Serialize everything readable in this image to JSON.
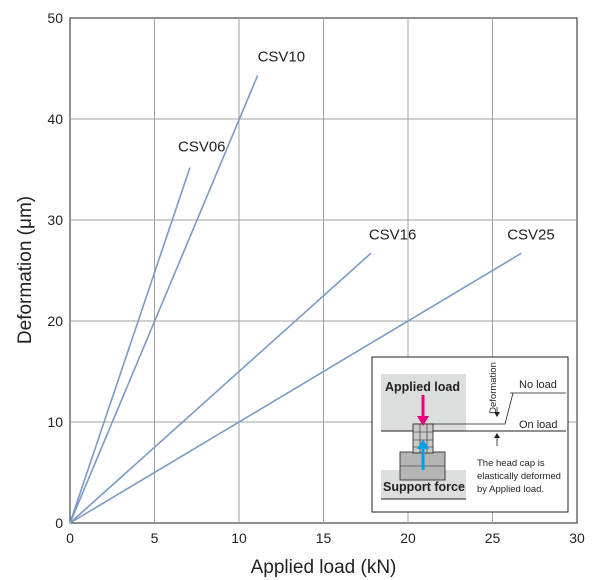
{
  "chart_data": {
    "type": "line",
    "title": "",
    "xlabel": "Applied load (kN)",
    "ylabel": "Deformation (μm)",
    "xlim": [
      0,
      30
    ],
    "ylim": [
      0,
      50
    ],
    "xticks": [
      "0",
      "5",
      "10",
      "15",
      "20",
      "25",
      "30"
    ],
    "yticks": [
      "0",
      "10",
      "20",
      "30",
      "40",
      "50"
    ],
    "grid": true,
    "series_color": "#7b9ac8",
    "series": [
      {
        "name": "CSV06",
        "x": [
          0,
          7.1
        ],
        "y": [
          0,
          35.2
        ]
      },
      {
        "name": "CSV10",
        "x": [
          0,
          11.1
        ],
        "y": [
          0,
          44.3
        ]
      },
      {
        "name": "CSV16",
        "x": [
          0,
          17.8
        ],
        "y": [
          0,
          26.7
        ]
      },
      {
        "name": "CSV25",
        "x": [
          0,
          26.7
        ],
        "y": [
          0,
          26.7
        ]
      }
    ],
    "inset": {
      "applied_load": "Applied load",
      "support_force": "Support force",
      "deformation": "Deformation",
      "no_load": "No load",
      "on_load": "On load",
      "note": [
        "The head cap is",
        "elastically deformed",
        "by Applied load."
      ],
      "applied_arrow_color": "#e6007e",
      "support_arrow_color": "#00a0e9"
    }
  }
}
